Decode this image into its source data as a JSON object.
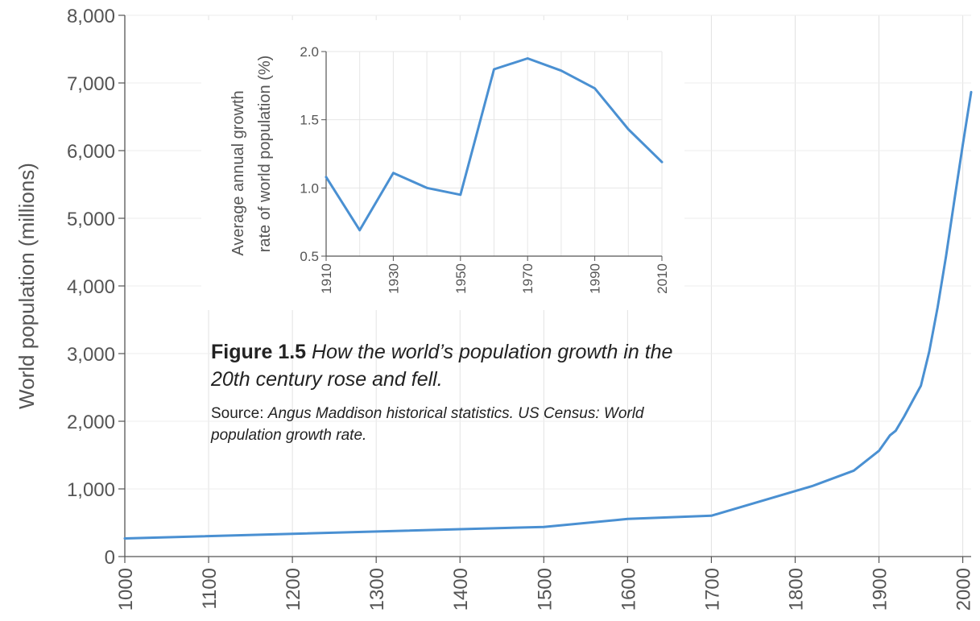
{
  "chart_data": [
    {
      "type": "line",
      "title": "",
      "xlabel": "",
      "ylabel": "World population (millions)",
      "xlim": [
        1000,
        2010
      ],
      "ylim": [
        0,
        8000
      ],
      "x_ticks": [
        1000,
        1100,
        1200,
        1300,
        1400,
        1500,
        1600,
        1700,
        1800,
        1900,
        2000
      ],
      "x_tick_labels": [
        "1000",
        "1100",
        "1200",
        "1300",
        "1400",
        "1500",
        "1600",
        "1700",
        "1800",
        "1900",
        "2000"
      ],
      "y_ticks": [
        0,
        1000,
        2000,
        3000,
        4000,
        5000,
        6000,
        7000,
        8000
      ],
      "y_tick_labels": [
        "0",
        "1,000",
        "2,000",
        "3,000",
        "4,000",
        "5,000",
        "6,000",
        "7,000",
        "8,000"
      ],
      "grid": "vertical",
      "color": "#4a90d2",
      "series": [
        {
          "x": [
            1000,
            1500,
            1600,
            1700,
            1820,
            1870,
            1900,
            1913,
            1920,
            1930,
            1940,
            1950,
            1960,
            1970,
            1980,
            1990,
            2000,
            2010
          ],
          "y": [
            268,
            438,
            556,
            603,
            1041,
            1270,
            1563,
            1791,
            1860,
            2070,
            2299,
            2525,
            3031,
            3686,
            4438,
            5269,
            6085,
            6866
          ]
        }
      ]
    },
    {
      "type": "line",
      "title": "",
      "xlabel": "",
      "ylabel": "Average annual growth rate of world population (%)",
      "ylabel_lines": [
        "Average annual growth",
        "rate of world population (%)"
      ],
      "xlim": [
        1910,
        2010
      ],
      "ylim": [
        0.5,
        2.0
      ],
      "x_ticks": [
        1910,
        1930,
        1950,
        1970,
        1990,
        2010
      ],
      "x_tick_labels": [
        "1910",
        "1930",
        "1950",
        "1970",
        "1990",
        "2010"
      ],
      "y_ticks": [
        0.5,
        1.0,
        1.5,
        2.0
      ],
      "y_tick_labels": [
        "0.5",
        "1.0",
        "1.5",
        "2.0"
      ],
      "grid": "both",
      "color": "#4a90d2",
      "series": [
        {
          "x": [
            1910,
            1920,
            1930,
            1940,
            1950,
            1960,
            1970,
            1980,
            1990,
            2000,
            2010
          ],
          "y": [
            1.08,
            0.69,
            1.11,
            1.0,
            0.95,
            1.87,
            1.95,
            1.86,
            1.73,
            1.43,
            1.19
          ]
        }
      ]
    }
  ],
  "caption": {
    "figure_label": "Figure 1.5",
    "figure_text": " How the world’s population growth in the 20th century rose and fell.",
    "source_label": "Source: ",
    "source_text": "Angus Maddison historical statistics. US Census: World population growth rate."
  }
}
